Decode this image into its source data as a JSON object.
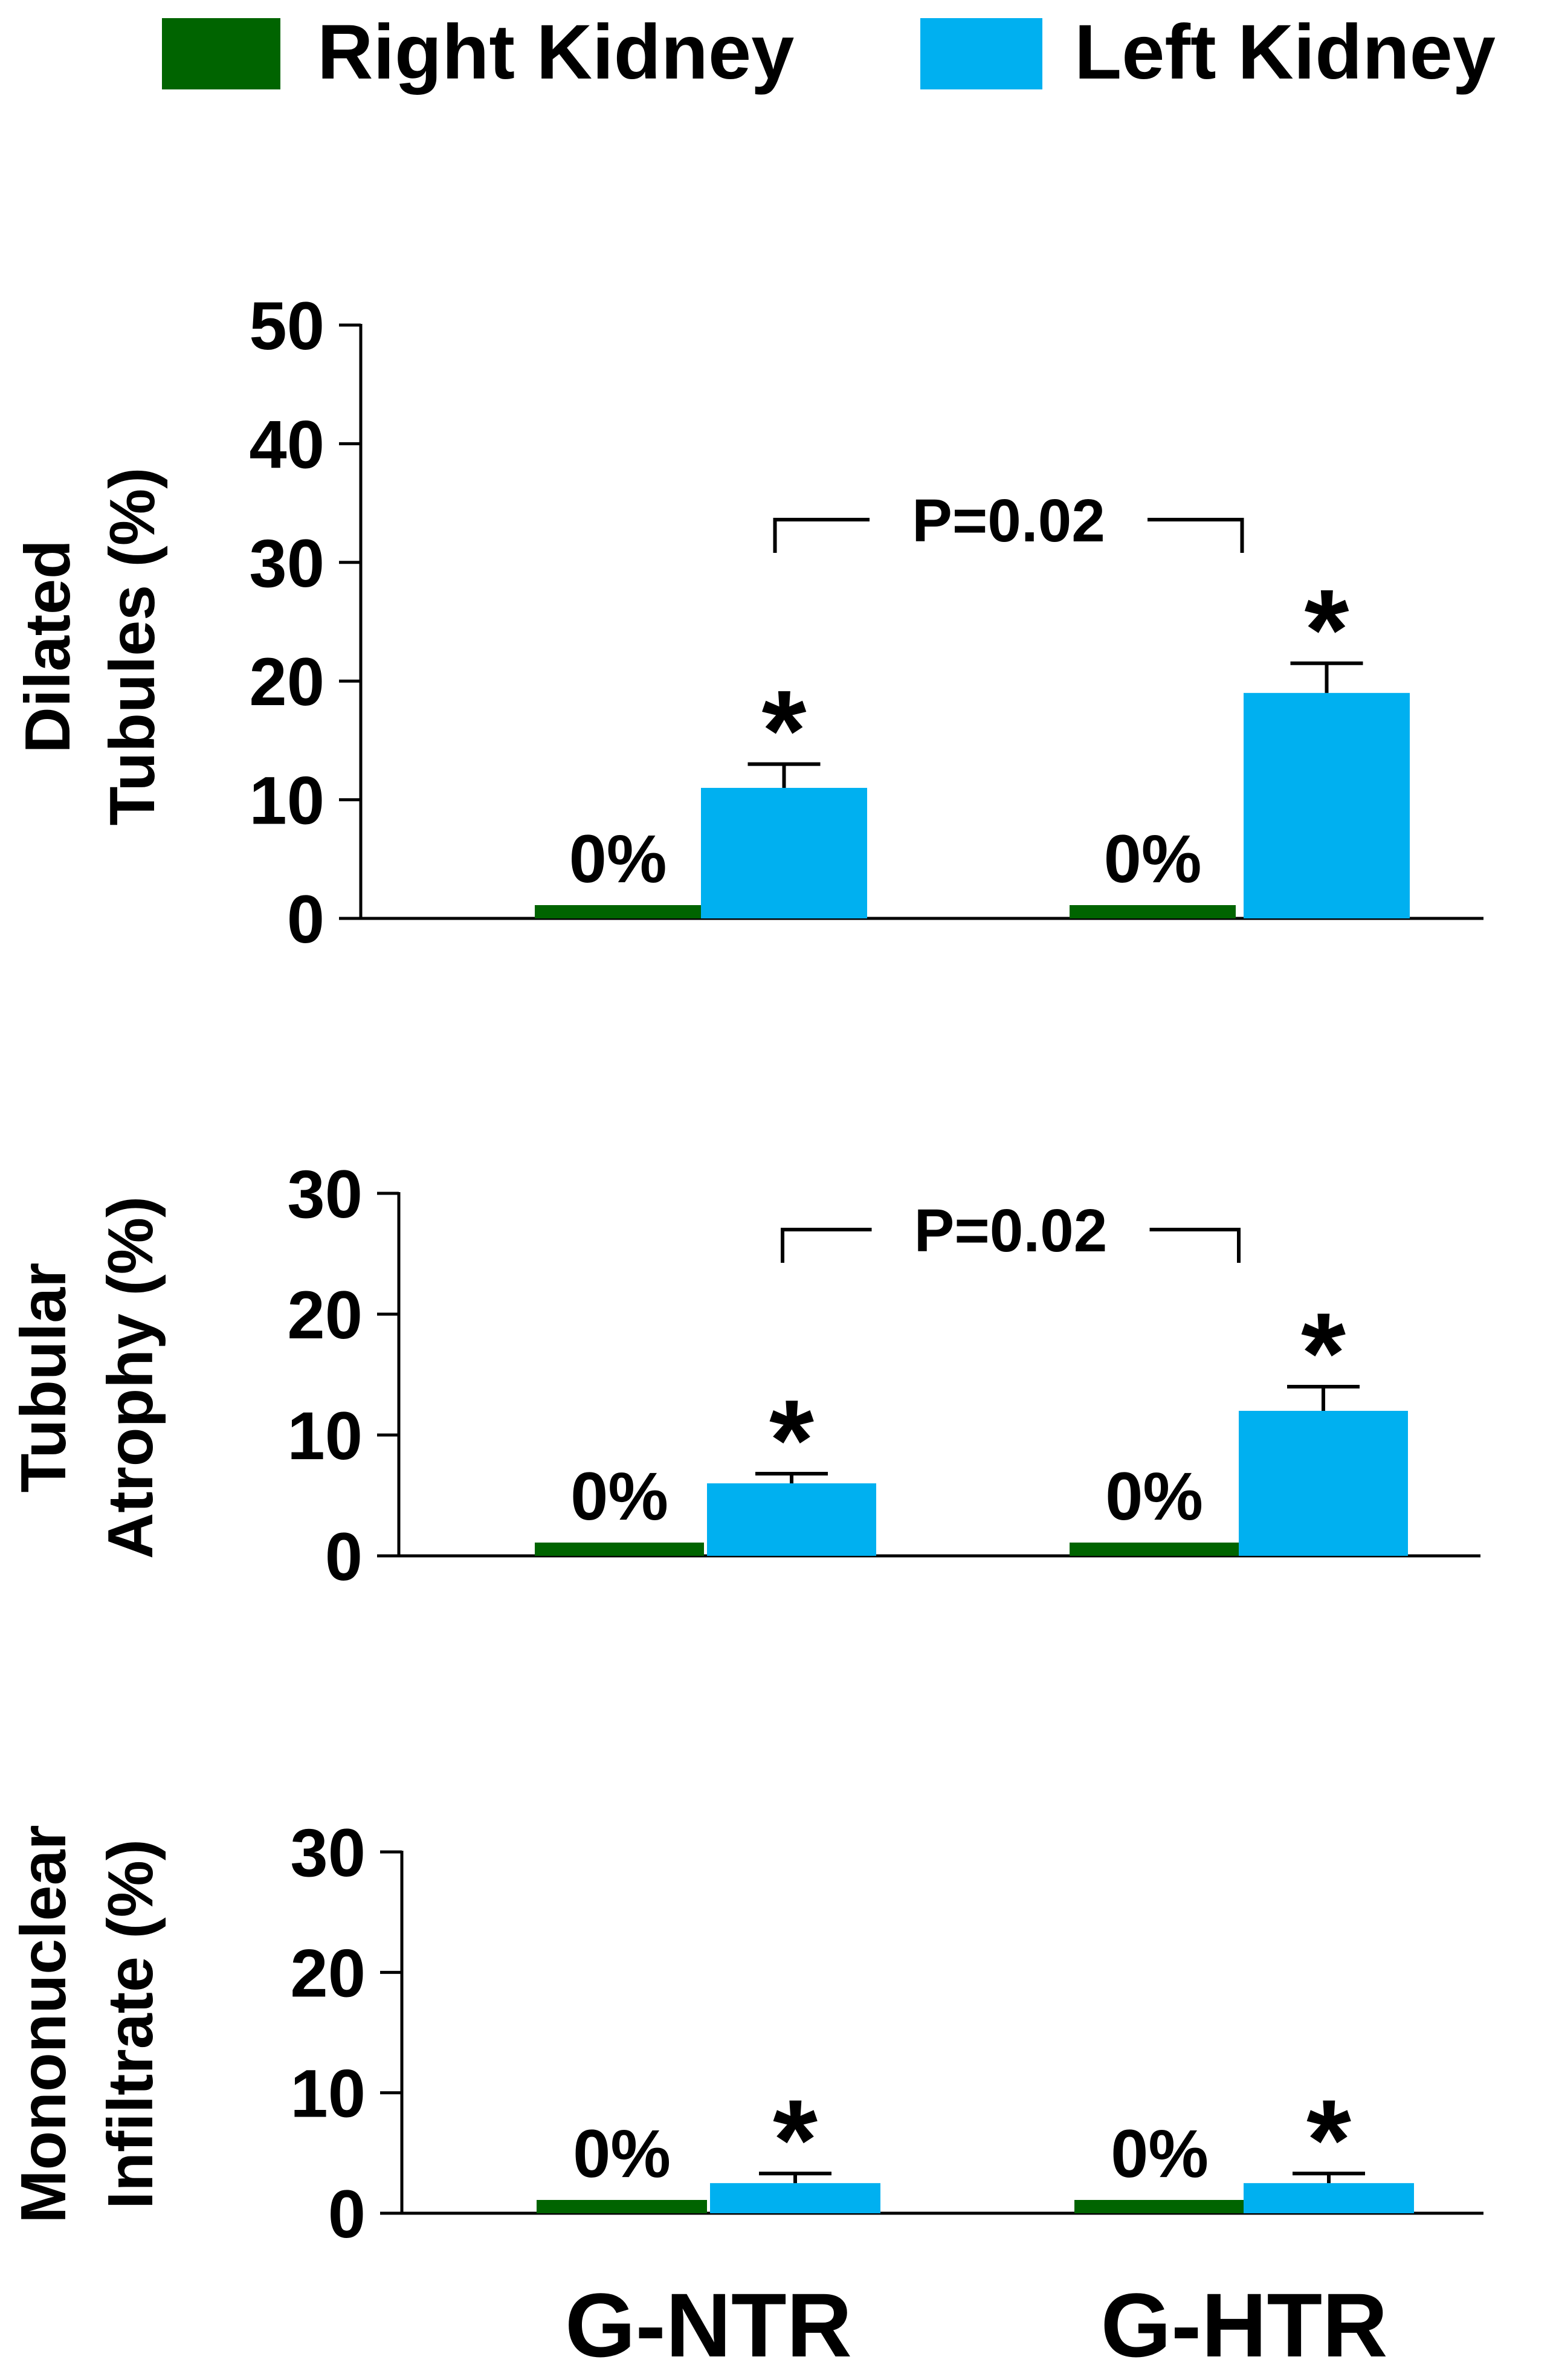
{
  "legend": {
    "position": "top-right",
    "items": [
      {
        "label": "Right Kidney",
        "color": "#006400"
      },
      {
        "label": "Left Kidney",
        "color": "#00B0F0"
      }
    ]
  },
  "chart_data": [
    {
      "type": "bar",
      "title": "",
      "ylabel_lines": [
        "Dilated",
        "Tubules (%)"
      ],
      "ylim": [
        0,
        50
      ],
      "yticks": [
        0,
        10,
        20,
        30,
        40,
        50
      ],
      "categories": [
        "G-NTR",
        "G-HTR"
      ],
      "series": [
        {
          "name": "Right Kidney",
          "values": [
            0,
            0
          ],
          "errors": [
            0,
            0
          ],
          "labels": [
            "0%",
            "0%"
          ]
        },
        {
          "name": "Left Kidney",
          "values": [
            11,
            19
          ],
          "errors": [
            2,
            2.5
          ],
          "labels": [
            "*",
            "*"
          ]
        }
      ],
      "comparison": {
        "label": "P=0.02",
        "between": [
          "G-NTR",
          "G-HTR"
        ]
      }
    },
    {
      "type": "bar",
      "title": "",
      "ylabel_lines": [
        "Tubular",
        "Atrophy (%)"
      ],
      "ylim": [
        0,
        30
      ],
      "yticks": [
        0,
        10,
        20,
        30
      ],
      "categories": [
        "G-NTR",
        "G-HTR"
      ],
      "series": [
        {
          "name": "Right Kidney",
          "values": [
            0,
            0
          ],
          "errors": [
            0,
            0
          ],
          "labels": [
            "0%",
            "0%"
          ]
        },
        {
          "name": "Left Kidney",
          "values": [
            6,
            12
          ],
          "errors": [
            0.8,
            2
          ],
          "labels": [
            "*",
            "*"
          ]
        }
      ],
      "comparison": {
        "label": "P=0.02",
        "between": [
          "G-NTR",
          "G-HTR"
        ]
      }
    },
    {
      "type": "bar",
      "title": "",
      "ylabel_lines": [
        "Mononuclear",
        "Infiltrate (%)"
      ],
      "ylim": [
        0,
        30
      ],
      "yticks": [
        0,
        10,
        20,
        30
      ],
      "categories": [
        "G-NTR",
        "G-HTR"
      ],
      "xtick_labels": [
        "G-NTR",
        "G-HTR"
      ],
      "series": [
        {
          "name": "Right Kidney",
          "values": [
            0,
            0
          ],
          "errors": [
            0,
            0
          ],
          "labels": [
            "0%",
            "0%"
          ]
        },
        {
          "name": "Left Kidney",
          "values": [
            2.5,
            2.5
          ],
          "errors": [
            0.8,
            0.8
          ],
          "labels": [
            "*",
            "*"
          ]
        }
      ],
      "comparison": null
    }
  ]
}
